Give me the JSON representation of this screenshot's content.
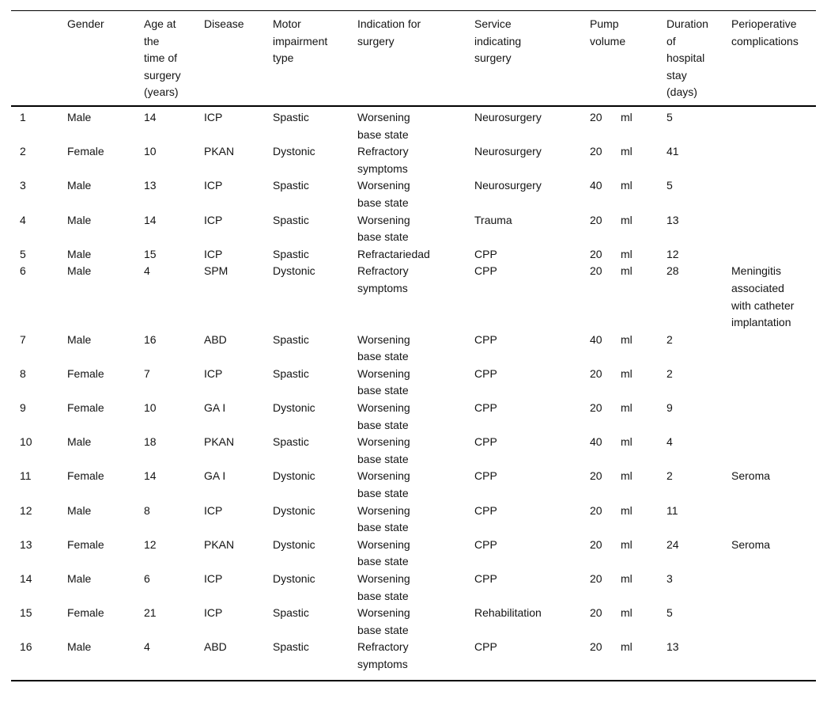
{
  "table": {
    "header": {
      "row_label": "",
      "gender": "Gender",
      "age": "Age at\nthe\ntime of\nsurgery\n(years)",
      "disease": "Disease",
      "motor": "Motor\nimpairment\ntype",
      "indication": "Indication for\nsurgery",
      "service": "Service\nindicating\nsurgery",
      "pump": "Pump\nvolume",
      "duration": "Duration\nof\nhospital\nstay\n(days)",
      "complications": "Perioperative\ncomplications"
    },
    "rows": [
      {
        "num": "1",
        "gender": "Male",
        "age": "14",
        "disease": "ICP",
        "motor": "Spastic",
        "indication": "Worsening\nbase state",
        "service": "Neurosurgery",
        "pump_value": "20",
        "pump_unit": "ml",
        "duration": "5",
        "complications": ""
      },
      {
        "num": "2",
        "gender": "Female",
        "age": "10",
        "disease": "PKAN",
        "motor": "Dystonic",
        "indication": "Refractory\nsymptoms",
        "service": "Neurosurgery",
        "pump_value": "20",
        "pump_unit": "ml",
        "duration": "41",
        "complications": ""
      },
      {
        "num": "3",
        "gender": "Male",
        "age": "13",
        "disease": "ICP",
        "motor": "Spastic",
        "indication": "Worsening\nbase state",
        "service": "Neurosurgery",
        "pump_value": "40",
        "pump_unit": "ml",
        "duration": "5",
        "complications": ""
      },
      {
        "num": "4",
        "gender": "Male",
        "age": "14",
        "disease": "ICP",
        "motor": "Spastic",
        "indication": "Worsening\nbase state",
        "service": "Trauma",
        "pump_value": "20",
        "pump_unit": "ml",
        "duration": "13",
        "complications": ""
      },
      {
        "num": "5",
        "gender": "Male",
        "age": "15",
        "disease": "ICP",
        "motor": "Spastic",
        "indication": "Refractariedad",
        "service": "CPP",
        "pump_value": "20",
        "pump_unit": "ml",
        "duration": "12",
        "complications": ""
      },
      {
        "num": "6",
        "gender": "Male",
        "age": "4",
        "disease": "SPM",
        "motor": "Dystonic",
        "indication": "Refractory\nsymptoms",
        "service": "CPP",
        "pump_value": "20",
        "pump_unit": "ml",
        "duration": "28",
        "complications": "Meningitis\nassociated\nwith catheter\nimplantation"
      },
      {
        "num": "7",
        "gender": "Male",
        "age": "16",
        "disease": "ABD",
        "motor": "Spastic",
        "indication": "Worsening\nbase state",
        "service": "CPP",
        "pump_value": "40",
        "pump_unit": "ml",
        "duration": "2",
        "complications": ""
      },
      {
        "num": "8",
        "gender": "Female",
        "age": "7",
        "disease": "ICP",
        "motor": "Spastic",
        "indication": "Worsening\nbase state",
        "service": "CPP",
        "pump_value": "20",
        "pump_unit": "ml",
        "duration": "2",
        "complications": ""
      },
      {
        "num": "9",
        "gender": "Female",
        "age": "10",
        "disease": "GA I",
        "motor": "Dystonic",
        "indication": "Worsening\nbase state",
        "service": "CPP",
        "pump_value": "20",
        "pump_unit": "ml",
        "duration": "9",
        "complications": ""
      },
      {
        "num": "10",
        "gender": "Male",
        "age": "18",
        "disease": "PKAN",
        "motor": "Spastic",
        "indication": "Worsening\nbase state",
        "service": "CPP",
        "pump_value": "40",
        "pump_unit": "ml",
        "duration": "4",
        "complications": ""
      },
      {
        "num": "11",
        "gender": "Female",
        "age": "14",
        "disease": "GA I",
        "motor": "Dystonic",
        "indication": "Worsening\nbase state",
        "service": "CPP",
        "pump_value": "20",
        "pump_unit": "ml",
        "duration": "2",
        "complications": "Seroma"
      },
      {
        "num": "12",
        "gender": "Male",
        "age": "8",
        "disease": "ICP",
        "motor": "Dystonic",
        "indication": "Worsening\nbase state",
        "service": "CPP",
        "pump_value": "20",
        "pump_unit": "ml",
        "duration": "11",
        "complications": ""
      },
      {
        "num": "13",
        "gender": "Female",
        "age": "12",
        "disease": "PKAN",
        "motor": "Dystonic",
        "indication": "Worsening\nbase state",
        "service": "CPP",
        "pump_value": "20",
        "pump_unit": "ml",
        "duration": "24",
        "complications": "Seroma"
      },
      {
        "num": "14",
        "gender": "Male",
        "age": "6",
        "disease": "ICP",
        "motor": "Dystonic",
        "indication": "Worsening\nbase state",
        "service": "CPP",
        "pump_value": "20",
        "pump_unit": "ml",
        "duration": "3",
        "complications": ""
      },
      {
        "num": "15",
        "gender": "Female",
        "age": "21",
        "disease": "ICP",
        "motor": "Spastic",
        "indication": "Worsening\nbase state",
        "service": "Rehabilitation",
        "pump_value": "20",
        "pump_unit": "ml",
        "duration": "5",
        "complications": ""
      },
      {
        "num": "16",
        "gender": "Male",
        "age": "4",
        "disease": "ABD",
        "motor": "Spastic",
        "indication": "Refractory\nsymptoms",
        "service": "CPP",
        "pump_value": "20",
        "pump_unit": "ml",
        "duration": "13",
        "complications": ""
      }
    ]
  }
}
